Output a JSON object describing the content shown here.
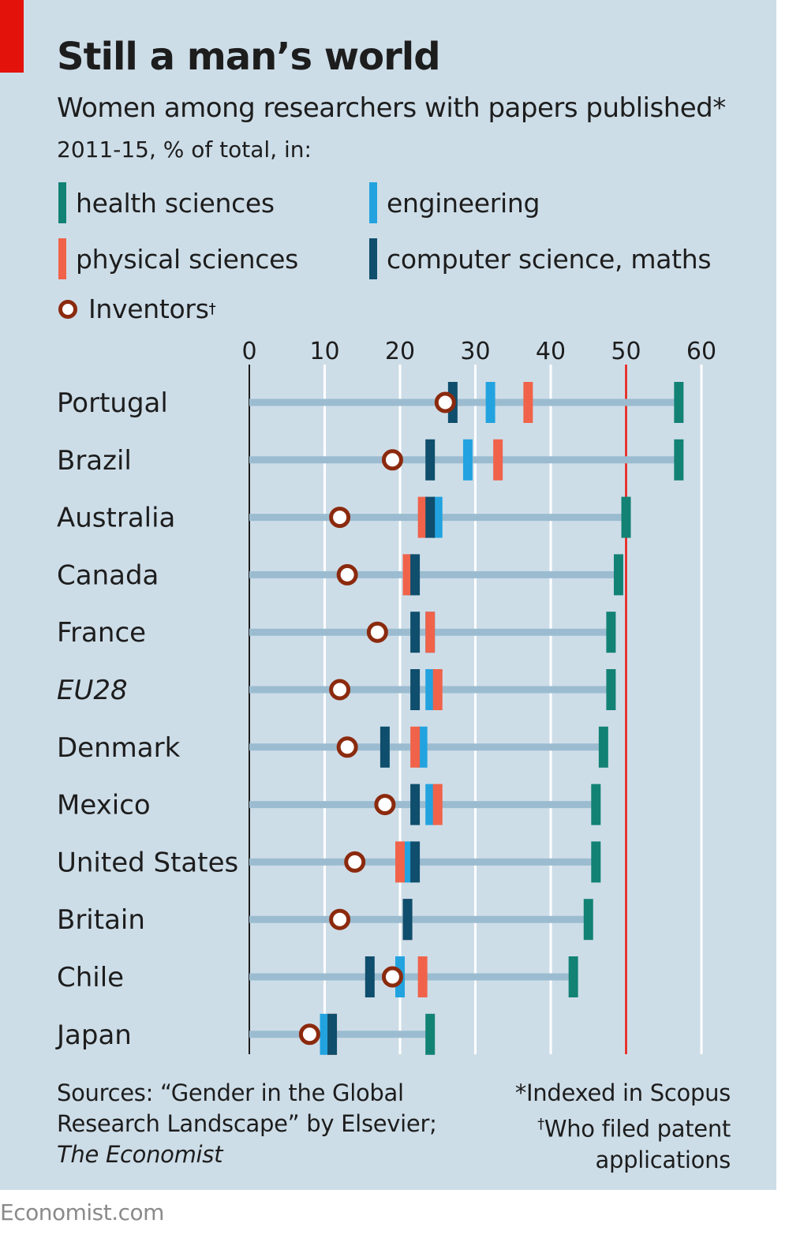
{
  "header": {
    "title": "Still a man’s world",
    "subtitle": "Women among researchers with papers published*",
    "subsubtitle": "2011-15, % of total, in:"
  },
  "legend": {
    "health": "health sciences",
    "engineering": "engineering",
    "physical": "physical sciences",
    "computer": "computer science, maths",
    "inventors": "Inventors",
    "inventors_mark": "†"
  },
  "colors": {
    "health": "#128274",
    "engineering": "#22a3df",
    "physical": "#f0634a",
    "computer": "#0f4e6c",
    "inventor_ring": "#8b2a0e",
    "track": "#9bbcd0",
    "reference_line": "#e3120b",
    "accent": "#e3120b"
  },
  "chart_data": {
    "type": "dot-range",
    "x_ticks": [
      "0",
      "10",
      "20",
      "30",
      "40",
      "50",
      "60"
    ],
    "xlim": [
      0,
      60
    ],
    "reference_value": 50,
    "grid": true,
    "categories": [
      "Portugal",
      "Brazil",
      "Australia",
      "Canada",
      "France",
      "EU28",
      "Denmark",
      "Mexico",
      "United States",
      "Britain",
      "Chile",
      "Japan"
    ],
    "italic_categories": [
      "EU28"
    ],
    "series": [
      {
        "name": "health sciences",
        "key": "health",
        "values": [
          57,
          57,
          50,
          49,
          48,
          48,
          47,
          46,
          46,
          45,
          43,
          24
        ]
      },
      {
        "name": "engineering",
        "key": "engineering",
        "values": [
          32,
          29,
          25,
          21.5,
          24,
          24,
          23,
          24,
          21,
          21,
          20,
          10
        ]
      },
      {
        "name": "physical sciences",
        "key": "physical",
        "values": [
          37,
          33,
          23,
          21,
          24,
          25,
          22,
          25,
          20,
          21,
          23,
          11
        ]
      },
      {
        "name": "computer science, maths",
        "key": "computer",
        "values": [
          27,
          24,
          24,
          22,
          22,
          22,
          18,
          22,
          22,
          21,
          16,
          11
        ]
      },
      {
        "name": "Inventors",
        "key": "inventors",
        "values": [
          26,
          19,
          12,
          13,
          17,
          12,
          13,
          18,
          14,
          12,
          19,
          8
        ]
      }
    ]
  },
  "footer": {
    "sources_line1": "Sources: “Gender in the Global",
    "sources_line2": "Research Landscape” by Elsevier;",
    "sources_line3": "The Economist",
    "note1": "*Indexed in Scopus",
    "note2_mark": "†",
    "note2_line1": "Who filed patent",
    "note2_line2": "applications",
    "brand": "Economist.com"
  }
}
